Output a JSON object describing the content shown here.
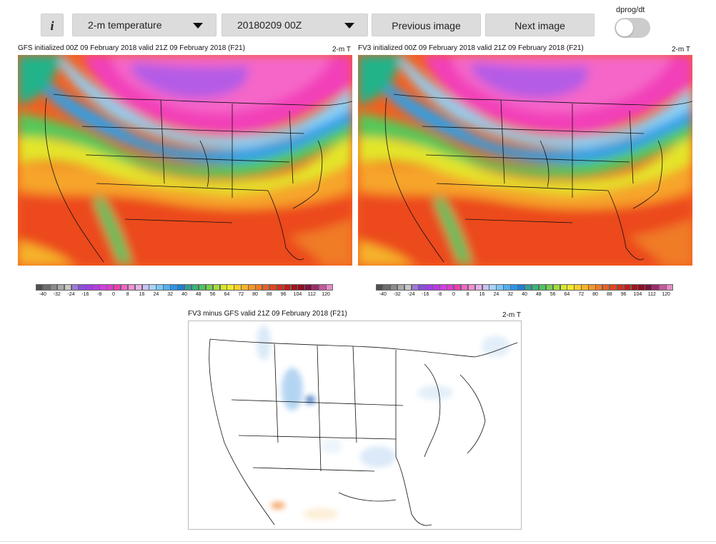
{
  "toolbar": {
    "info_label": "i",
    "variable_select": "2-m temperature",
    "date_select": "20180209 00Z",
    "previous_label": "Previous image",
    "next_label": "Next image",
    "toggle_label": "dprog/dt"
  },
  "panels": {
    "gfs": {
      "title": "GFS initialized 00Z 09 February 2018 valid 21Z 09 February 2018 (F21)",
      "field": "2-m T"
    },
    "fv3": {
      "title": "FV3 initialized 00Z 09 February 2018 valid 21Z 09 February 2018 (F21)",
      "field": "2-m T"
    },
    "diff": {
      "title": "FV3 minus GFS valid 21Z 09 February 2018 (F21)",
      "field": "2-m T"
    }
  },
  "colorbar": {
    "ticks": [
      "-40",
      "-32",
      "-24",
      "-16",
      "-8",
      "0",
      "8",
      "16",
      "24",
      "32",
      "40",
      "48",
      "56",
      "64",
      "72",
      "80",
      "88",
      "96",
      "104",
      "112",
      "120"
    ],
    "colors": [
      "#505050",
      "#6e6e6e",
      "#8c8c8c",
      "#aaaaaa",
      "#c8c8c8",
      "#9b7ad6",
      "#8a4fe0",
      "#a23ee8",
      "#b83be6",
      "#d23fe3",
      "#e03bcf",
      "#f03cb4",
      "#f565c6",
      "#f58fd6",
      "#e8b1ea",
      "#c9c3f3",
      "#a9d3fb",
      "#7ec6f8",
      "#4fb0f2",
      "#2b95e6",
      "#1f7fd8",
      "#2aa39c",
      "#39b57a",
      "#4cc561",
      "#74d24c",
      "#a3de3a",
      "#d4e82d",
      "#f2e82a",
      "#f6cf2b",
      "#f5b32b",
      "#f39629",
      "#f07c26",
      "#ec5f22",
      "#e5451d",
      "#d62e1a",
      "#bf1d1a",
      "#a2141c",
      "#8a0f24",
      "#7e1240",
      "#9b2c6b",
      "#c25a99",
      "#e58bc6"
    ]
  }
}
